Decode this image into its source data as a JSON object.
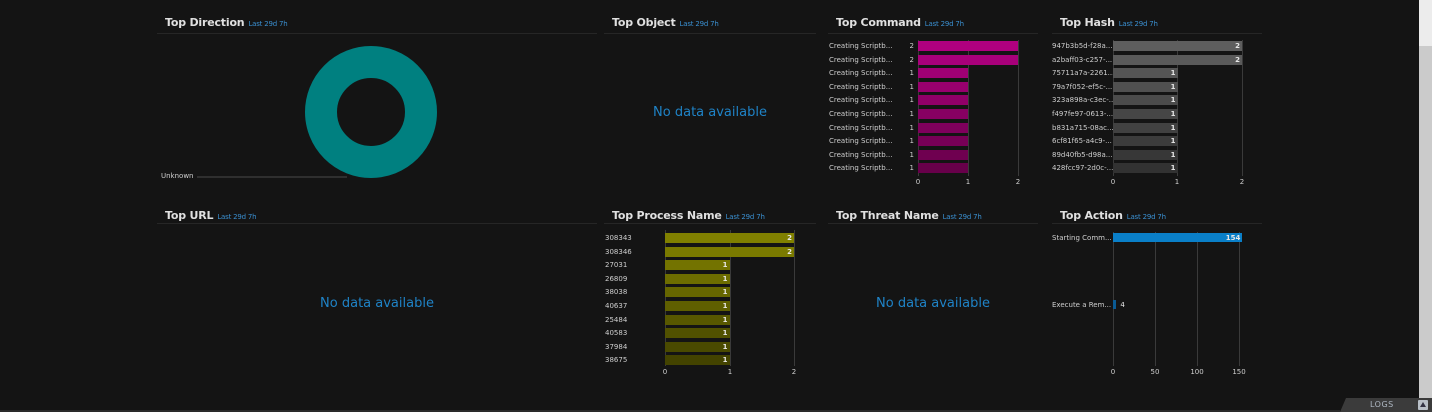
{
  "panels": {
    "direction": {
      "title": "Top Direction",
      "range": "Last 29d 7h",
      "legend_label": "Unknown",
      "color": "#008080"
    },
    "object": {
      "title": "Top Object",
      "range": "Last 29d 7h",
      "empty": "No data available"
    },
    "command": {
      "title": "Top Command",
      "range": "Last 29d 7h",
      "ticks": [
        "0",
        "1",
        "2"
      ]
    },
    "hash": {
      "title": "Top Hash",
      "range": "Last 29d 7h",
      "ticks": [
        "0",
        "1",
        "2"
      ]
    },
    "url": {
      "title": "Top URL",
      "range": "Last 29d 7h",
      "empty": "No data available"
    },
    "process": {
      "title": "Top Process Name",
      "range": "Last 29d 7h",
      "ticks": [
        "0",
        "1",
        "2"
      ]
    },
    "threat": {
      "title": "Top Threat Name",
      "range": "Last 29d 7h",
      "empty": "No data available"
    },
    "action": {
      "title": "Top Action",
      "range": "Last 29d 7h",
      "ticks": [
        "0",
        "50",
        "100",
        "150"
      ]
    }
  },
  "footer": {
    "logs_label": "LOGS"
  },
  "chart_data": [
    {
      "type": "pie",
      "title": "Top Direction",
      "subtitle": "Last 29d 7h",
      "categories": [
        "Unknown"
      ],
      "values": [
        1
      ],
      "colors": [
        "#008080"
      ],
      "donut": true
    },
    {
      "type": "table",
      "title": "Top Object",
      "subtitle": "Last 29d 7h",
      "values": [],
      "annotation": "No data available"
    },
    {
      "type": "bar",
      "orientation": "horizontal",
      "title": "Top Command",
      "subtitle": "Last 29d 7h",
      "categories": [
        "Creating Scriptb...",
        "Creating Scriptb...",
        "Creating Scriptb...",
        "Creating Scriptb...",
        "Creating Scriptb...",
        "Creating Scriptb...",
        "Creating Scriptb...",
        "Creating Scriptb...",
        "Creating Scriptb...",
        "Creating Scriptb..."
      ],
      "values": [
        2,
        2,
        1,
        1,
        1,
        1,
        1,
        1,
        1,
        1
      ],
      "colors": [
        "#b0007f",
        "#a8007a",
        "#a00074",
        "#98006e",
        "#900068",
        "#870062",
        "#7f005c",
        "#770056",
        "#6f0050",
        "#67004a"
      ],
      "xlim": [
        0,
        2
      ],
      "xticks": [
        0,
        1,
        2
      ]
    },
    {
      "type": "bar",
      "orientation": "horizontal",
      "title": "Top Hash",
      "subtitle": "Last 29d 7h",
      "categories": [
        "947b3b5d-f28a...",
        "a2baff03-c257-...",
        "75711a7a-2261...",
        "79a7f052-ef5c-...",
        "323a898a-c3ec-...",
        "f497fe97-0613-...",
        "b831a715-08ac...",
        "6cf81f65-a4c9-...",
        "89d40fb5-d98a...",
        "428fcc97-2d0c-..."
      ],
      "values": [
        2,
        2,
        1,
        1,
        1,
        1,
        1,
        1,
        1,
        1
      ],
      "colors": [
        "#5e5e5e",
        "#5a5a5a",
        "#555555",
        "#505050",
        "#4b4b4b",
        "#464646",
        "#414141",
        "#3c3c3c",
        "#373737",
        "#323232"
      ],
      "xlim": [
        0,
        2
      ],
      "xticks": [
        0,
        1,
        2
      ]
    },
    {
      "type": "table",
      "title": "Top URL",
      "subtitle": "Last 29d 7h",
      "values": [],
      "annotation": "No data available"
    },
    {
      "type": "bar",
      "orientation": "horizontal",
      "title": "Top Process Name",
      "subtitle": "Last 29d 7h",
      "categories": [
        "308343",
        "308346",
        "27031",
        "26809",
        "38038",
        "40637",
        "25484",
        "40583",
        "37984",
        "38675"
      ],
      "values": [
        2,
        2,
        1,
        1,
        1,
        1,
        1,
        1,
        1,
        1
      ],
      "colors": [
        "#808000",
        "#7a7a00",
        "#737300",
        "#6d6d00",
        "#666600",
        "#5f5f00",
        "#585800",
        "#515100",
        "#4a4a00",
        "#434300"
      ],
      "xlim": [
        0,
        2
      ],
      "xticks": [
        0,
        1,
        2
      ]
    },
    {
      "type": "table",
      "title": "Top Threat Name",
      "subtitle": "Last 29d 7h",
      "values": [],
      "annotation": "No data available"
    },
    {
      "type": "bar",
      "orientation": "horizontal",
      "title": "Top Action",
      "subtitle": "Last 29d 7h",
      "categories": [
        "Starting Comm...",
        "Execute a Rem..."
      ],
      "values": [
        154,
        4
      ],
      "colors": [
        "#0a7fc8",
        "#0a5a93"
      ],
      "xlim": [
        0,
        160
      ],
      "xticks": [
        0,
        50,
        100,
        150
      ]
    }
  ]
}
